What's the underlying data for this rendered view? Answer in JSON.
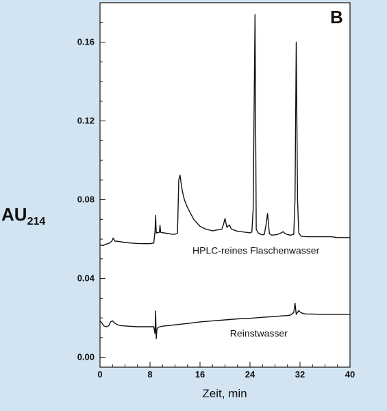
{
  "chart_data": {
    "type": "line",
    "panel_label": "B",
    "xlabel": "Zeit, min",
    "ylabel": "AU",
    "ylabel_subscript": "214",
    "xlim": [
      0,
      40
    ],
    "ylim": [
      -0.005,
      0.18
    ],
    "xticks": [
      0,
      8,
      16,
      24,
      32,
      40
    ],
    "yticks": [
      0.0,
      0.04,
      0.08,
      0.12,
      0.16
    ],
    "ytick_labels": [
      "0.00",
      "0.04",
      "0.08",
      "0.12",
      "0.16"
    ],
    "grid": false,
    "colors": {
      "background": "#d2e4f2",
      "plot_area": "#ffffff",
      "line": "#111111"
    },
    "series": [
      {
        "name": "HPLC-reines Flaschenwasser",
        "label_at": [
          14.8,
          0.0525
        ],
        "x": [
          0,
          0.5,
          1.0,
          1.5,
          1.9,
          2.1,
          2.4,
          3,
          4,
          5,
          6,
          7,
          8,
          8.6,
          8.8,
          8.9,
          9.0,
          9.1,
          9.3,
          9.5,
          9.6,
          9.7,
          9.9,
          10.2,
          10.6,
          11,
          11.5,
          12,
          12.4,
          12.6,
          12.8,
          13.0,
          13.2,
          13.5,
          14,
          14.5,
          15,
          16,
          17,
          18,
          18.5,
          19,
          19.5,
          19.8,
          20,
          20.3,
          20.7,
          21,
          21.5,
          22,
          22.5,
          23,
          23.5,
          24,
          24.3,
          24.5,
          24.8,
          25.0,
          25.3,
          25.7,
          26,
          26.3,
          26.6,
          26.8,
          27.1,
          27.5,
          28,
          28.5,
          29,
          29.3,
          29.6,
          30,
          30.5,
          31.0,
          31.2,
          31.4,
          31.6,
          31.8,
          32.2,
          33,
          34,
          35,
          36,
          37,
          38,
          39,
          40
        ],
        "y": [
          0.057,
          0.0568,
          0.0575,
          0.058,
          0.059,
          0.0605,
          0.059,
          0.0588,
          0.0583,
          0.058,
          0.0578,
          0.0577,
          0.0577,
          0.058,
          0.064,
          0.072,
          0.063,
          0.0635,
          0.0632,
          0.0635,
          0.067,
          0.0635,
          0.0633,
          0.0632,
          0.063,
          0.0628,
          0.0625,
          0.0625,
          0.063,
          0.09,
          0.0925,
          0.088,
          0.084,
          0.08,
          0.076,
          0.073,
          0.07,
          0.0665,
          0.065,
          0.0642,
          0.0645,
          0.0648,
          0.065,
          0.068,
          0.0705,
          0.066,
          0.0672,
          0.0652,
          0.0645,
          0.064,
          0.0638,
          0.0636,
          0.0634,
          0.0632,
          0.0636,
          0.075,
          0.174,
          0.065,
          0.0632,
          0.0625,
          0.0622,
          0.0625,
          0.068,
          0.073,
          0.0628,
          0.062,
          0.0622,
          0.0625,
          0.0632,
          0.0638,
          0.0628,
          0.0623,
          0.062,
          0.0625,
          0.08,
          0.16,
          0.08,
          0.063,
          0.0615,
          0.0612,
          0.0612,
          0.0612,
          0.0612,
          0.0612,
          0.0608,
          0.0608,
          0.0608
        ]
      },
      {
        "name": "Reinstwasser",
        "label_at": [
          20.8,
          0.0105
        ],
        "x": [
          0,
          0.3,
          0.6,
          1.0,
          1.4,
          1.7,
          2.0,
          2.3,
          2.8,
          3.5,
          4.5,
          6,
          7,
          8,
          8.6,
          8.8,
          8.9,
          9.0,
          9.1,
          9.3,
          9.6,
          10,
          12,
          14,
          16,
          18,
          20,
          22,
          24,
          26,
          28,
          29,
          30,
          30.5,
          31.0,
          31.2,
          31.4,
          31.6,
          31.8,
          32.0,
          32.3,
          32.6,
          33,
          34,
          35,
          36,
          37,
          38,
          39,
          40
        ],
        "y": [
          0.0185,
          0.0175,
          0.016,
          0.0155,
          0.016,
          0.018,
          0.0185,
          0.0175,
          0.0165,
          0.016,
          0.0158,
          0.0155,
          0.0155,
          0.0155,
          0.0155,
          0.012,
          0.0235,
          0.0095,
          0.014,
          0.0152,
          0.0155,
          0.0158,
          0.0165,
          0.0172,
          0.018,
          0.0185,
          0.019,
          0.0195,
          0.0198,
          0.0203,
          0.0207,
          0.021,
          0.0212,
          0.0215,
          0.0228,
          0.0275,
          0.0218,
          0.0228,
          0.0238,
          0.023,
          0.0225,
          0.0222,
          0.022,
          0.022,
          0.0218,
          0.0218,
          0.0218,
          0.0218,
          0.0218,
          0.0218
        ]
      }
    ]
  }
}
